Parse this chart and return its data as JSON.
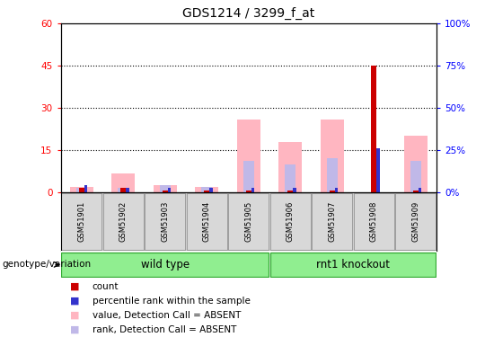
{
  "title": "GDS1214 / 3299_f_at",
  "samples": [
    "GSM51901",
    "GSM51902",
    "GSM51903",
    "GSM51904",
    "GSM51905",
    "GSM51906",
    "GSM51907",
    "GSM51908",
    "GSM51909"
  ],
  "value_absent": [
    2.0,
    6.5,
    2.5,
    2.0,
    26.0,
    18.0,
    26.0,
    0.0,
    20.0
  ],
  "rank_absent": [
    1.5,
    1.5,
    2.5,
    2.0,
    11.0,
    10.0,
    12.0,
    0.0,
    11.0
  ],
  "count": [
    1.5,
    1.5,
    0.5,
    0.5,
    0.5,
    0.5,
    0.5,
    45.0,
    0.5
  ],
  "percentile_rank": [
    2.5,
    1.5,
    1.5,
    1.5,
    1.5,
    1.5,
    1.5,
    15.5,
    1.5
  ],
  "ylim_left": [
    0,
    60
  ],
  "ylim_right": [
    0,
    100
  ],
  "yticks_left": [
    0,
    15,
    30,
    45,
    60
  ],
  "yticks_right": [
    0,
    25,
    50,
    75,
    100
  ],
  "group_label": "genotype/variation",
  "color_count": "#cc0000",
  "color_percentile": "#3333cc",
  "color_value_absent": "#ffb6c1",
  "color_rank_absent": "#c0b8e8",
  "legend_items": [
    {
      "color": "#cc0000",
      "label": "count"
    },
    {
      "color": "#3333cc",
      "label": "percentile rank within the sample"
    },
    {
      "color": "#ffb6c1",
      "label": "value, Detection Call = ABSENT"
    },
    {
      "color": "#c0b8e8",
      "label": "rank, Detection Call = ABSENT"
    }
  ]
}
